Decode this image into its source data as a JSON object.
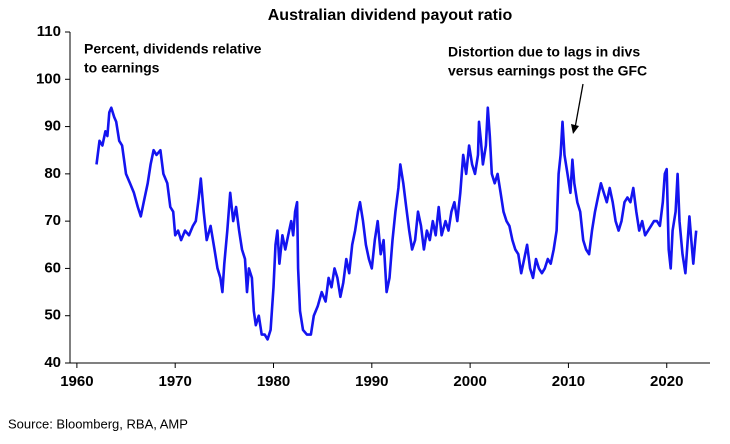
{
  "chart_data": {
    "type": "line",
    "title": "Australian dividend payout ratio",
    "annotations": [
      {
        "text": [
          "Percent, dividends relative",
          "to earnings"
        ]
      },
      {
        "text": [
          "Distortion due to lags in divs",
          "versus earnings post the GFC"
        ]
      }
    ],
    "source": "Source: Bloomberg, RBA, AMP",
    "xlim": [
      1959.3,
      2024.4
    ],
    "xticks": [
      1960,
      1970,
      1980,
      1990,
      2000,
      2010,
      2020
    ],
    "ylim": [
      40,
      110
    ],
    "yticks": [
      40,
      50,
      60,
      70,
      80,
      90,
      100,
      110
    ],
    "grid": false,
    "x": [
      1962.0,
      1962.3,
      1962.6,
      1962.9,
      1963.1,
      1963.3,
      1963.5,
      1963.8,
      1964.0,
      1964.3,
      1964.6,
      1965.0,
      1965.4,
      1965.8,
      1966.2,
      1966.5,
      1966.8,
      1967.2,
      1967.5,
      1967.8,
      1968.1,
      1968.5,
      1968.8,
      1969.2,
      1969.5,
      1969.8,
      1970.0,
      1970.3,
      1970.6,
      1971.0,
      1971.4,
      1971.8,
      1972.1,
      1972.4,
      1972.6,
      1972.9,
      1973.2,
      1973.6,
      1974.0,
      1974.3,
      1974.6,
      1974.8,
      1975.0,
      1975.3,
      1975.6,
      1975.9,
      1976.2,
      1976.5,
      1976.8,
      1977.1,
      1977.3,
      1977.5,
      1977.8,
      1978.0,
      1978.2,
      1978.5,
      1978.8,
      1979.1,
      1979.4,
      1979.7,
      1980.0,
      1980.2,
      1980.4,
      1980.6,
      1980.9,
      1981.2,
      1981.5,
      1981.8,
      1982.0,
      1982.2,
      1982.4,
      1982.5,
      1982.7,
      1983.0,
      1983.4,
      1983.8,
      1984.1,
      1984.5,
      1984.9,
      1985.3,
      1985.6,
      1985.9,
      1986.2,
      1986.5,
      1986.8,
      1987.1,
      1987.4,
      1987.7,
      1988.0,
      1988.3,
      1988.6,
      1988.8,
      1989.1,
      1989.4,
      1989.7,
      1990.0,
      1990.3,
      1990.6,
      1990.9,
      1991.2,
      1991.5,
      1991.8,
      1992.1,
      1992.4,
      1992.7,
      1992.9,
      1993.2,
      1993.5,
      1993.8,
      1994.1,
      1994.4,
      1994.7,
      1995.0,
      1995.3,
      1995.6,
      1995.9,
      1996.2,
      1996.5,
      1996.8,
      1997.1,
      1997.5,
      1997.8,
      1998.1,
      1998.4,
      1998.7,
      1999.0,
      1999.3,
      1999.6,
      1999.9,
      2000.2,
      2000.5,
      2000.8,
      2000.9,
      2001.1,
      2001.3,
      2001.6,
      2001.8,
      2002.0,
      2002.2,
      2002.5,
      2002.8,
      2003.1,
      2003.4,
      2003.7,
      2004.0,
      2004.3,
      2004.6,
      2004.9,
      2005.2,
      2005.5,
      2005.8,
      2006.1,
      2006.4,
      2006.7,
      2007.0,
      2007.3,
      2007.6,
      2007.9,
      2008.2,
      2008.5,
      2008.8,
      2009.0,
      2009.2,
      2009.4,
      2009.6,
      2009.9,
      2010.2,
      2010.4,
      2010.6,
      2010.9,
      2011.2,
      2011.5,
      2011.8,
      2012.1,
      2012.4,
      2012.7,
      2013.0,
      2013.3,
      2013.6,
      2013.9,
      2014.2,
      2014.5,
      2014.8,
      2015.1,
      2015.4,
      2015.7,
      2016.0,
      2016.3,
      2016.6,
      2016.9,
      2017.2,
      2017.5,
      2017.8,
      2018.1,
      2018.4,
      2018.7,
      2019.0,
      2019.3,
      2019.6,
      2019.8,
      2020.0,
      2020.2,
      2020.4,
      2020.6,
      2020.9,
      2021.1,
      2021.3,
      2021.6,
      2021.9,
      2022.1,
      2022.3,
      2022.5,
      2022.7,
      2022.9,
      2023.0
    ],
    "series": [
      {
        "color": "#1414f0",
        "values": [
          82,
          87,
          86,
          89,
          88,
          93,
          94,
          92,
          91,
          87,
          86,
          80,
          78,
          76,
          73,
          71,
          74,
          78,
          82,
          85,
          84,
          85,
          80,
          78,
          73,
          72,
          67,
          68,
          66,
          68,
          67,
          69,
          70,
          75,
          79,
          72,
          66,
          69,
          64,
          60,
          58,
          55,
          61,
          68,
          76,
          70,
          73,
          68,
          64,
          62,
          55,
          60,
          58,
          51,
          48,
          50,
          46,
          46,
          45,
          47,
          56,
          65,
          68,
          61,
          67,
          64,
          67,
          70,
          67,
          72,
          74,
          60,
          51,
          47,
          46,
          46,
          50,
          52,
          55,
          53,
          58,
          56,
          60,
          58,
          54,
          57,
          62,
          59,
          65,
          68,
          72,
          74,
          70,
          65,
          62,
          60,
          66,
          70,
          63,
          66,
          55,
          58,
          66,
          72,
          77,
          82,
          78,
          73,
          68,
          64,
          66,
          72,
          69,
          64,
          68,
          66,
          70,
          67,
          73,
          67,
          70,
          68,
          72,
          74,
          70,
          76,
          84,
          80,
          86,
          82,
          80,
          84,
          91,
          87,
          82,
          86,
          94,
          88,
          80,
          78,
          80,
          76,
          72,
          70,
          69,
          66,
          64,
          63,
          59,
          62,
          65,
          60,
          58,
          62,
          60,
          59,
          60,
          62,
          61,
          64,
          68,
          80,
          84,
          91,
          84,
          80,
          76,
          83,
          78,
          74,
          72,
          66,
          64,
          63,
          68,
          72,
          75,
          78,
          76,
          74,
          77,
          74,
          70,
          68,
          70,
          74,
          75,
          74,
          77,
          72,
          68,
          70,
          67,
          68,
          69,
          70,
          70,
          69,
          74,
          80,
          81,
          64,
          60,
          68,
          72,
          80,
          70,
          63,
          59,
          65,
          71,
          66,
          61,
          66,
          68
        ]
      }
    ]
  }
}
